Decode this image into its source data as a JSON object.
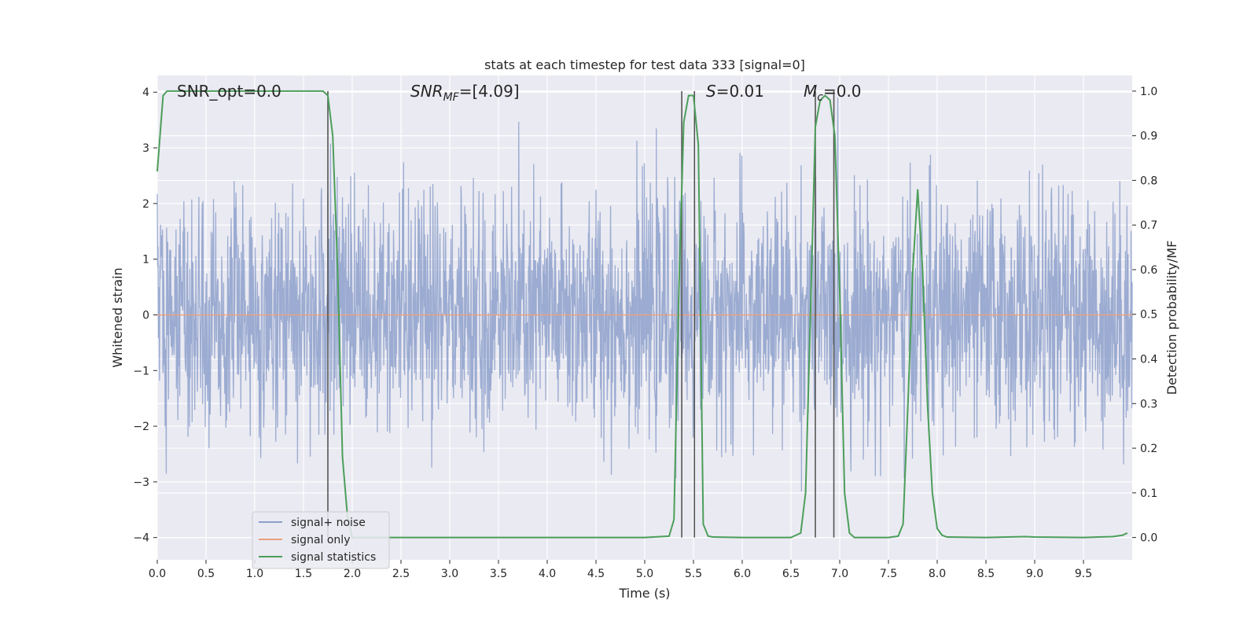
{
  "chart_data": {
    "type": "line",
    "title": "stats at each timestep for test data 333 [signal=0]",
    "xlabel": "Time (s)",
    "ylabel_left": "Whitened strain",
    "ylabel_right": "Detection probability/MF",
    "xlim": [
      0,
      10
    ],
    "ylim_left": [
      -4.4,
      4.3
    ],
    "ylim_right": [
      -0.05,
      1.035
    ],
    "x_ticks": [
      "0.0",
      "0.5",
      "1.0",
      "1.5",
      "2.0",
      "2.5",
      "3.0",
      "3.5",
      "4.0",
      "4.5",
      "5.0",
      "5.5",
      "6.0",
      "6.5",
      "7.0",
      "7.5",
      "8.0",
      "8.5",
      "9.0",
      "9.5"
    ],
    "y_ticks_left": [
      "4",
      "3",
      "2",
      "1",
      "0",
      "−1",
      "−2",
      "−3",
      "−4"
    ],
    "y_ticks_right": [
      "1.0",
      "0.9",
      "0.8",
      "0.7",
      "0.6",
      "0.5",
      "0.4",
      "0.3",
      "0.2",
      "0.1",
      "0.0"
    ],
    "grid": true,
    "annotations": {
      "snr_opt": "SNR_opt=0.0",
      "snr_mf_base": "SNR",
      "snr_mf_sub": "MF",
      "snr_mf_value": "=[4.09]",
      "s_italic": "S",
      "s_value": "=0.01",
      "mc_italic": "M",
      "mc_sub": "c",
      "mc_value": "=0.0"
    },
    "legend": {
      "placement": "lower-left",
      "entries": [
        {
          "label": "signal+ noise",
          "color": "#8da0cb"
        },
        {
          "label": "signal only",
          "color": "#e8a07f"
        },
        {
          "label": "signal statistics",
          "color": "#4c9e5a"
        }
      ]
    },
    "series": [
      {
        "name": "signal statistics",
        "axis": "right",
        "color": "#4c9e5a",
        "x": [
          0.0,
          0.06,
          0.1,
          0.2,
          0.5,
          1.0,
          1.5,
          1.7,
          1.75,
          1.8,
          1.85,
          1.9,
          1.95,
          2.0,
          2.5,
          3.0,
          4.0,
          5.0,
          5.25,
          5.3,
          5.35,
          5.4,
          5.45,
          5.5,
          5.55,
          5.6,
          5.65,
          5.7,
          6.0,
          6.5,
          6.6,
          6.65,
          6.7,
          6.75,
          6.8,
          6.85,
          6.9,
          6.95,
          7.0,
          7.05,
          7.1,
          7.15,
          7.2,
          7.5,
          7.6,
          7.65,
          7.7,
          7.75,
          7.8,
          7.85,
          7.9,
          7.95,
          8.0,
          8.05,
          8.1,
          8.5,
          8.9,
          9.0,
          9.5,
          9.8,
          9.9,
          9.95
        ],
        "y": [
          0.82,
          0.99,
          1.0,
          1.0,
          1.0,
          1.0,
          1.0,
          1.0,
          0.99,
          0.9,
          0.6,
          0.18,
          0.05,
          0.0,
          0.0,
          0.0,
          0.0,
          0.0,
          0.003,
          0.04,
          0.55,
          0.93,
          0.99,
          0.99,
          0.88,
          0.03,
          0.003,
          0.001,
          0.0,
          0.0,
          0.01,
          0.1,
          0.5,
          0.92,
          0.98,
          0.99,
          0.98,
          0.9,
          0.55,
          0.1,
          0.01,
          0.0,
          0.0,
          0.0,
          0.003,
          0.03,
          0.3,
          0.6,
          0.78,
          0.6,
          0.3,
          0.1,
          0.02,
          0.005,
          0.001,
          0.0,
          0.002,
          0.001,
          0.0,
          0.002,
          0.005,
          0.01
        ]
      },
      {
        "name": "signal only",
        "axis": "left",
        "color": "#e8a07f",
        "x": [
          0,
          10
        ],
        "y": [
          0,
          0
        ]
      },
      {
        "name": "signal+ noise",
        "axis": "left",
        "color": "#8da0cb",
        "style": "dense gaussian noise, spikes up to about ±4"
      }
    ],
    "vertical_markers": {
      "color": "#555555",
      "x": [
        1.75,
        5.38,
        5.51,
        6.75,
        6.94
      ]
    }
  }
}
